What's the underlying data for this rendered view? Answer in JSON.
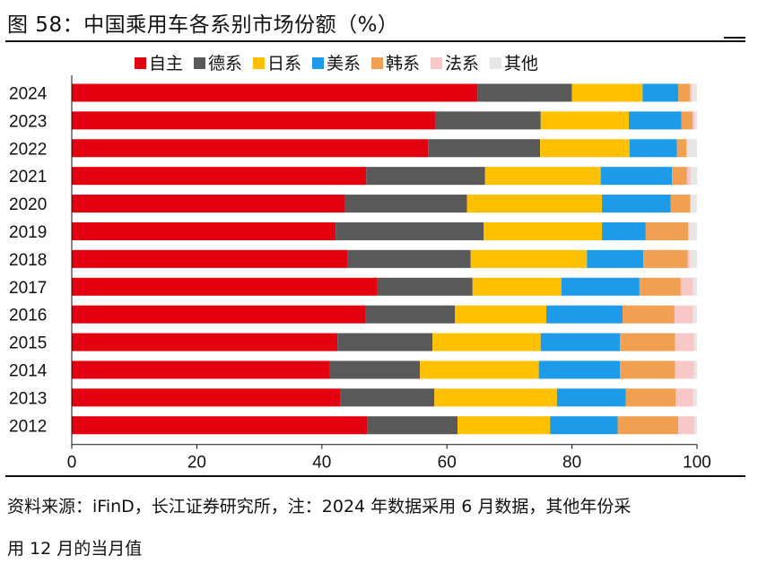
{
  "title": "图 58：中国乘用车各系别市场份额（%）",
  "source_note_line1": "资料来源：iFinD，长江证券研究所，注：2024 年数据采用 6 月数据，其他年份采",
  "source_note_line2": "用 12 月的当月值",
  "chart_data": {
    "type": "bar",
    "orientation": "horizontal",
    "stacked": true,
    "title": "",
    "xlabel": "",
    "ylabel": "",
    "xlim": [
      0,
      100
    ],
    "xticks": [
      0,
      20,
      40,
      60,
      80,
      100
    ],
    "legend_position": "top",
    "categories": [
      "2024",
      "2023",
      "2022",
      "2021",
      "2020",
      "2019",
      "2018",
      "2017",
      "2016",
      "2015",
      "2014",
      "2013",
      "2012"
    ],
    "series": [
      {
        "name": "自主",
        "color": "#e3000f",
        "values": [
          64.9,
          58.2,
          57.0,
          47.1,
          43.7,
          42.2,
          44.1,
          48.9,
          47.0,
          42.5,
          41.3,
          43.0,
          47.3
        ]
      },
      {
        "name": "德系",
        "color": "#595959",
        "values": [
          15.1,
          16.8,
          17.9,
          19.0,
          19.5,
          23.7,
          19.7,
          15.2,
          14.3,
          15.2,
          14.4,
          15.0,
          14.4
        ]
      },
      {
        "name": "日系",
        "color": "#ffc000",
        "values": [
          11.3,
          14.1,
          14.3,
          18.5,
          21.6,
          18.9,
          18.6,
          14.2,
          14.6,
          17.3,
          19.0,
          19.6,
          14.8
        ]
      },
      {
        "name": "美系",
        "color": "#1e9be8",
        "values": [
          5.7,
          8.4,
          7.6,
          11.4,
          11.0,
          7.0,
          9.0,
          12.5,
          12.2,
          12.7,
          13.0,
          11.0,
          10.8
        ]
      },
      {
        "name": "韩系",
        "color": "#f0a050",
        "values": [
          1.9,
          1.8,
          1.5,
          2.4,
          3.1,
          6.8,
          7.1,
          6.6,
          8.3,
          8.8,
          8.8,
          8.0,
          9.7
        ]
      },
      {
        "name": "法系",
        "color": "#f8c8c8",
        "values": [
          0.3,
          0.4,
          0.2,
          0.6,
          0.1,
          0.2,
          0.4,
          2.0,
          3.0,
          3.0,
          3.0,
          2.8,
          2.6
        ]
      },
      {
        "name": "其他",
        "color": "#e6e6e6",
        "values": [
          0.8,
          0.3,
          1.5,
          1.0,
          1.0,
          1.2,
          1.1,
          0.6,
          0.6,
          0.5,
          0.5,
          0.6,
          0.4
        ]
      }
    ]
  }
}
